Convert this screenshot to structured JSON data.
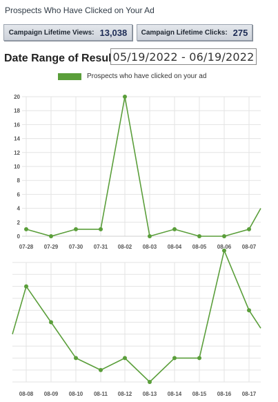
{
  "header": {
    "title": "Prospects Who Have Clicked on Your Ad"
  },
  "stats": {
    "views_label": "Campaign Lifetime Views:",
    "views_value": "13,038",
    "clicks_label": "Campaign Lifetime Clicks:",
    "clicks_value": "275"
  },
  "date_range": {
    "label": "Date Range of Results:",
    "value": "05/19/2022 - 06/19/2022"
  },
  "colors": {
    "series": "#5a9e3a",
    "grid": "#e3e3e3",
    "tick_text": "#555555"
  },
  "chart_data": [
    {
      "type": "line",
      "title": "",
      "xlabel": "",
      "ylabel": "",
      "legend": {
        "position": "top",
        "entries": [
          "Prospects who have clicked on your ad"
        ]
      },
      "grid": true,
      "ylim": [
        0,
        20
      ],
      "yticks": [
        0,
        2,
        4,
        6,
        8,
        10,
        12,
        14,
        16,
        18,
        20
      ],
      "categories": [
        "07-28",
        "07-29",
        "07-30",
        "07-31",
        "08-02",
        "08-03",
        "08-04",
        "08-05",
        "08-06",
        "08-07"
      ],
      "series": [
        {
          "name": "Prospects who have clicked on your ad",
          "values": [
            1,
            0,
            1,
            1,
            20,
            0,
            1,
            0,
            0,
            1
          ],
          "trailing_value": 4
        }
      ]
    },
    {
      "type": "line",
      "title": "",
      "xlabel": "",
      "ylabel": "",
      "grid": true,
      "ylim": [
        0,
        10
      ],
      "categories": [
        "08-08",
        "08-09",
        "08-10",
        "08-11",
        "08-12",
        "08-13",
        "08-14",
        "08-15",
        "08-16",
        "08-17"
      ],
      "series": [
        {
          "values": [
            8,
            5,
            2,
            1,
            2,
            0,
            2,
            2,
            11,
            6
          ],
          "leading_value": 4,
          "trailing_value": 4.5
        }
      ]
    }
  ]
}
